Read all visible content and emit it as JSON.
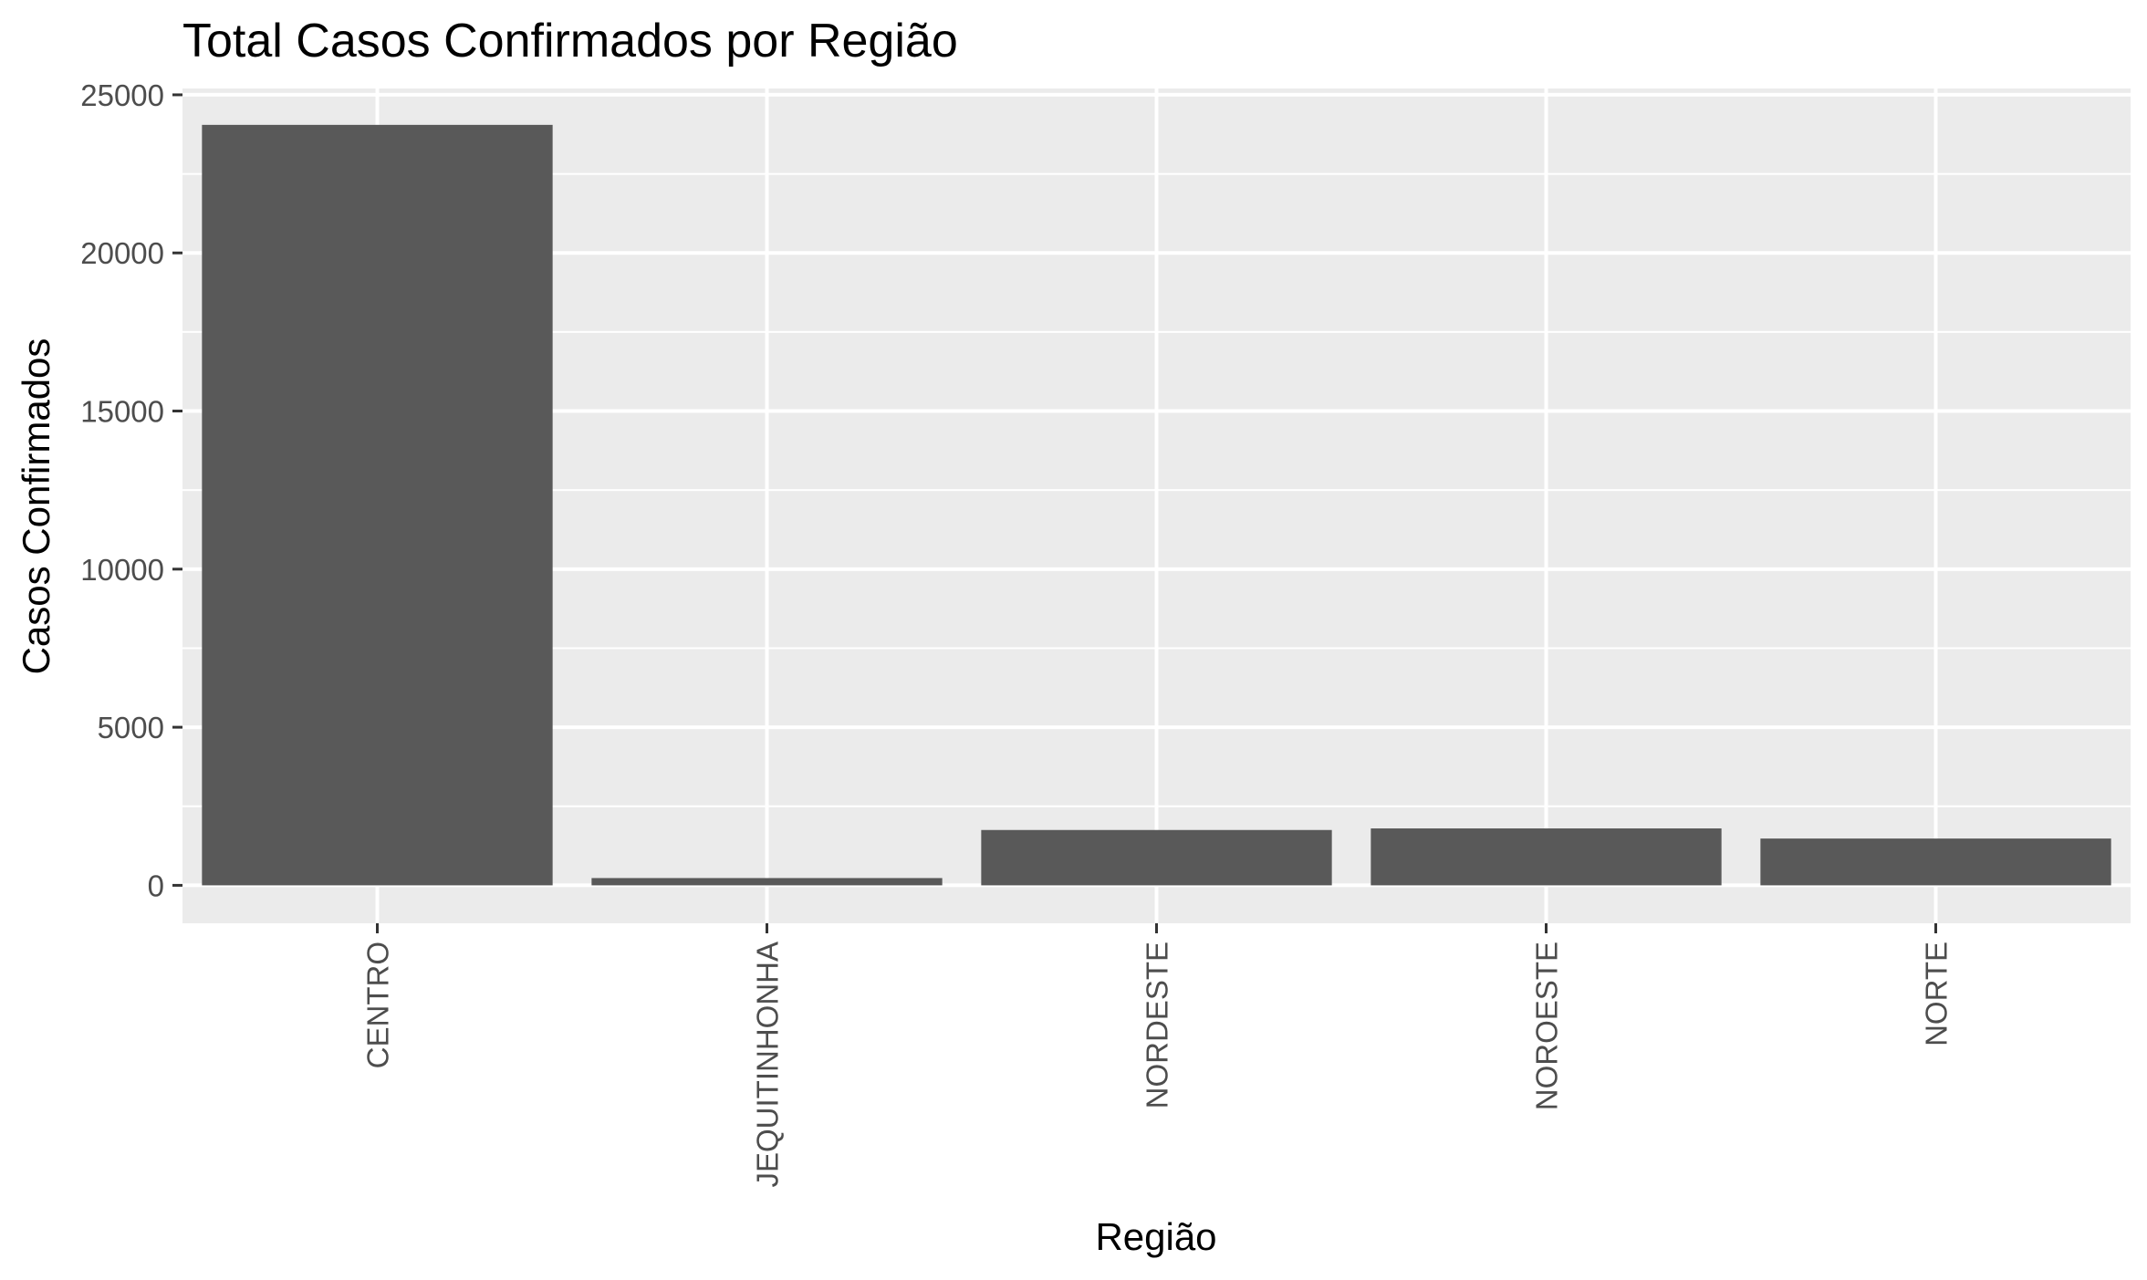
{
  "chart_data": {
    "type": "bar",
    "title": "Total Casos Confirmados por Região",
    "xlabel": "Região",
    "ylabel": "Casos Confirmados",
    "categories": [
      "CENTRO",
      "JEQUITINHONHA",
      "NORDESTE",
      "NOROESTE",
      "NORTE"
    ],
    "values": [
      24050,
      230,
      1750,
      1800,
      1480
    ],
    "ylim": [
      -1200,
      25200
    ],
    "yticks": [
      0,
      5000,
      10000,
      15000,
      20000,
      25000
    ],
    "ytick_labels": [
      "0",
      "5000",
      "10000",
      "15000",
      "20000",
      "25000"
    ],
    "grid": true,
    "legend": "none",
    "bar_color": "#595959",
    "panel_color": "#ebebeb",
    "grid_color": "#ffffff"
  }
}
